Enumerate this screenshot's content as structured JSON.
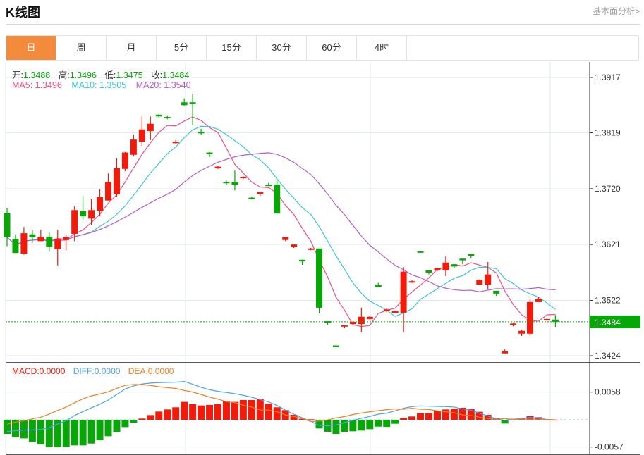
{
  "header": {
    "title": "K线图",
    "link": "基本面分析>"
  },
  "tabs": [
    {
      "label": "日",
      "active": true
    },
    {
      "label": "周"
    },
    {
      "label": "月"
    },
    {
      "label": "5分"
    },
    {
      "label": "15分"
    },
    {
      "label": "30分"
    },
    {
      "label": "60分"
    },
    {
      "label": "4时"
    }
  ],
  "legend": {
    "open_label": "开:",
    "open": "1.3488",
    "high_label": "高:",
    "high": "1.3496",
    "low_label": "低:",
    "low": "1.3475",
    "close_label": "收:",
    "close": "1.3484",
    "ma5": "MA5: 1.3496",
    "ma10": "MA10: 1.3505",
    "ma20": "MA20: 1.3540",
    "macd": "MACD:0.0000",
    "diff": "DIFF:0.0000",
    "dea": "DEA:0.0000"
  },
  "colors": {
    "up": "#f21b0b",
    "down": "#08a708",
    "ma5": "#f0517f",
    "ma10": "#3fc6dc",
    "ma20": "#b45cc9",
    "diff": "#4aa3f0",
    "dea": "#f57d20",
    "accent": "#f28b3c"
  },
  "chart_data": [
    {
      "type": "candlestick",
      "title": "K线图",
      "ylim": [
        1.3424,
        1.3917
      ],
      "yticks": [
        "1.3917",
        "1.3819",
        "1.3720",
        "1.3621",
        "1.3522",
        "1.3424"
      ],
      "last_price": "1.3484",
      "ohlc": [
        [
          1.3677,
          1.3686,
          1.3618,
          1.3634
        ],
        [
          1.3631,
          1.3639,
          1.3606,
          1.3606
        ],
        [
          1.3605,
          1.3652,
          1.3603,
          1.3641
        ],
        [
          1.3639,
          1.3646,
          1.3624,
          1.3634
        ],
        [
          1.3627,
          1.3647,
          1.3627,
          1.3635
        ],
        [
          1.3635,
          1.3642,
          1.3608,
          1.3617
        ],
        [
          1.3613,
          1.3647,
          1.3584,
          1.3631
        ],
        [
          1.3629,
          1.3639,
          1.3611,
          1.3634
        ],
        [
          1.364,
          1.3689,
          1.3627,
          1.3682
        ],
        [
          1.368,
          1.3707,
          1.3664,
          1.3671
        ],
        [
          1.3667,
          1.3701,
          1.3656,
          1.3682
        ],
        [
          1.3681,
          1.3719,
          1.3671,
          1.3705
        ],
        [
          1.3699,
          1.3747,
          1.3699,
          1.3732
        ],
        [
          1.371,
          1.3774,
          1.3705,
          1.3756
        ],
        [
          1.3755,
          1.3785,
          1.3751,
          1.3784
        ],
        [
          1.378,
          1.3816,
          1.3777,
          1.3807
        ],
        [
          1.3803,
          1.3848,
          1.3796,
          1.3825
        ],
        [
          1.3822,
          1.3848,
          1.3806,
          1.3835
        ],
        [
          1.3851,
          1.3852,
          1.3846,
          1.3848
        ],
        [
          1.3847,
          1.385,
          1.3843,
          1.3845
        ],
        [
          1.3801,
          1.3806,
          1.38,
          1.3803
        ],
        [
          1.3873,
          1.388,
          1.3867,
          1.3868
        ],
        [
          1.3873,
          1.3887,
          1.3833,
          1.3871
        ],
        [
          1.3821,
          1.3826,
          1.3815,
          1.3818
        ],
        [
          1.3784,
          1.3785,
          1.3776,
          1.3781
        ],
        [
          1.3756,
          1.376,
          1.3755,
          1.3759
        ],
        [
          1.3732,
          1.3734,
          1.3727,
          1.373
        ],
        [
          1.3732,
          1.3752,
          1.3717,
          1.3727
        ],
        [
          1.3739,
          1.3742,
          1.3737,
          1.3741
        ],
        [
          1.3704,
          1.3706,
          1.3701,
          1.3702
        ],
        [
          1.3711,
          1.3715,
          1.3707,
          1.3714
        ],
        [
          1.3727,
          1.373,
          1.3725,
          1.3726
        ],
        [
          1.3727,
          1.3736,
          1.3676,
          1.3676
        ],
        [
          1.3629,
          1.3635,
          1.3627,
          1.3634
        ],
        [
          1.3617,
          1.3621,
          1.3615,
          1.3621
        ],
        [
          1.3594,
          1.3594,
          1.3585,
          1.3591
        ],
        [
          1.3613,
          1.3615,
          1.3611,
          1.3614
        ],
        [
          1.3614,
          1.3614,
          1.3499,
          1.3509
        ],
        [
          1.3485,
          1.3485,
          1.3479,
          1.3483
        ],
        [
          1.3442,
          1.3443,
          1.3439,
          1.344
        ],
        [
          1.3476,
          1.3478,
          1.3473,
          1.3478
        ],
        [
          1.348,
          1.3485,
          1.3479,
          1.3484
        ],
        [
          1.348,
          1.3509,
          1.3465,
          1.3493
        ],
        [
          1.3489,
          1.3494,
          1.3486,
          1.3493
        ],
        [
          1.355,
          1.3553,
          1.3545,
          1.3546
        ],
        [
          1.3503,
          1.3508,
          1.3501,
          1.3506
        ],
        [
          1.35,
          1.3504,
          1.3499,
          1.3503
        ],
        [
          1.35,
          1.3581,
          1.3465,
          1.3573
        ],
        [
          1.3554,
          1.3558,
          1.3553,
          1.3556
        ],
        [
          1.3609,
          1.361,
          1.3606,
          1.3607
        ],
        [
          1.3575,
          1.3575,
          1.3568,
          1.3571
        ],
        [
          1.3575,
          1.358,
          1.3574,
          1.3579
        ],
        [
          1.3575,
          1.36,
          1.3565,
          1.3589
        ],
        [
          1.3586,
          1.3586,
          1.3579,
          1.3582
        ],
        [
          1.3596,
          1.3596,
          1.3586,
          1.3593
        ],
        [
          1.3604,
          1.3604,
          1.3596,
          1.3601
        ],
        [
          1.355,
          1.3559,
          1.355,
          1.3558
        ],
        [
          1.355,
          1.359,
          1.3541,
          1.3568
        ],
        [
          1.3539,
          1.3539,
          1.353,
          1.3534
        ],
        [
          1.3428,
          1.3435,
          1.3428,
          1.3432
        ],
        [
          1.3479,
          1.3483,
          1.3476,
          1.3481
        ],
        [
          1.3463,
          1.347,
          1.3459,
          1.3468
        ],
        [
          1.3463,
          1.3526,
          1.3459,
          1.3519
        ],
        [
          1.3519,
          1.3528,
          1.3519,
          1.3525
        ],
        [
          1.3488,
          1.349,
          1.3486,
          1.3489
        ],
        [
          1.3488,
          1.3496,
          1.3475,
          1.3484
        ]
      ],
      "series": [
        {
          "name": "MA5",
          "period": 5
        },
        {
          "name": "MA10",
          "period": 10
        },
        {
          "name": "MA20",
          "period": 20
        }
      ]
    },
    {
      "type": "bar+line",
      "title": "MACD",
      "ylim": [
        -0.0057,
        0.0058
      ],
      "yticks": [
        "0.0058",
        "-0.0057"
      ],
      "macd": [
        -0.00295,
        -0.00364,
        -0.00389,
        -0.00462,
        -0.00512,
        -0.00571,
        -0.00571,
        -0.00571,
        -0.00536,
        -0.00536,
        -0.00497,
        -0.00428,
        -0.00344,
        -0.00251,
        -0.00153,
        -0.00059,
        0.00025,
        0.00098,
        0.00172,
        0.00216,
        0.00261,
        0.00374,
        0.00325,
        0.003,
        0.0031,
        0.00325,
        0.00384,
        0.00374,
        0.00413,
        0.00413,
        0.00438,
        0.00339,
        0.00261,
        0.00202,
        0.00103,
        0.0002,
        0.0001,
        -0.00182,
        -0.00251,
        -0.00295,
        -0.00251,
        -0.00241,
        -0.00226,
        -0.00197,
        -0.00143,
        -0.00148,
        -0.00084,
        0.00039,
        0.00069,
        0.00138,
        0.00138,
        0.00187,
        0.00216,
        0.00236,
        0.00251,
        0.00226,
        0.00167,
        0.00103,
        0.0003,
        -0.00079,
        0.0002,
        0.0003,
        0.00074,
        0.00054,
        5e-05,
        0.0
      ],
      "diff": [
        -0.00241,
        -0.00231,
        -0.00216,
        -0.00212,
        -0.00202,
        -0.00167,
        -0.00089,
        -0.0002,
        0.00089,
        0.00172,
        0.00251,
        0.00325,
        0.00413,
        0.00531,
        0.00645,
        0.00708,
        0.00748,
        0.00768,
        0.00777,
        0.00782,
        0.00787,
        0.00802,
        0.00743,
        0.00679,
        0.0063,
        0.00595,
        0.00571,
        0.00546,
        0.00512,
        0.00472,
        0.00423,
        0.00374,
        0.003,
        0.00202,
        0.00118,
        0.00039,
        -0.0003,
        -0.00118,
        -0.00128,
        -0.00108,
        -0.00059,
        -0.0001,
        0.0003,
        0.00069,
        0.00118,
        0.00138,
        0.00187,
        0.00241,
        0.00276,
        0.0029,
        0.00285,
        0.0028,
        0.00276,
        0.00266,
        0.00226,
        0.00202,
        0.00138,
        0.00079,
        0.0002,
        -0.0001,
        0.0001,
        0.0003,
        0.00049,
        0.00039,
        5e-05,
        0.0
      ]
    }
  ]
}
